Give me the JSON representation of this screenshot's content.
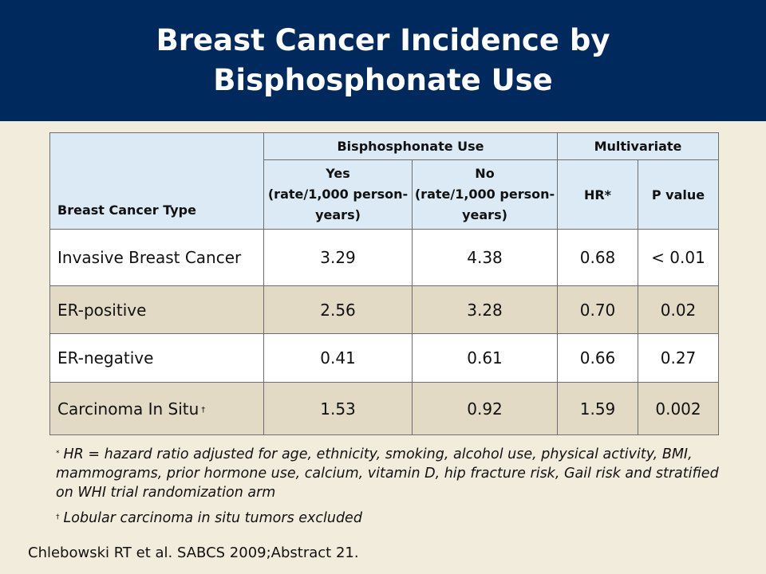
{
  "title": {
    "line1": "Breast Cancer Incidence by",
    "line2": "Bisphosphonate Use"
  },
  "table": {
    "headers": {
      "type": "Breast Cancer Type",
      "group_use": "Bisphosphonate Use",
      "group_multi": "Multivariate",
      "yes_line1": "Yes",
      "yes_line2": "(rate/1,000 person-years)",
      "no_line1": "No",
      "no_line2": "(rate/1,000 person-years)",
      "hr": "HR*",
      "p": "P value"
    },
    "rows": [
      {
        "type": "Invasive Breast Cancer",
        "mark": "",
        "yes": "3.29",
        "no": "4.38",
        "hr": "0.68",
        "p": "< 0.01"
      },
      {
        "type": "ER-positive",
        "mark": "",
        "yes": "2.56",
        "no": "3.28",
        "hr": "0.70",
        "p": "0.02"
      },
      {
        "type": "ER-negative",
        "mark": "",
        "yes": "0.41",
        "no": "0.61",
        "hr": "0.66",
        "p": "0.27"
      },
      {
        "type": "Carcinoma In Situ",
        "mark": "†",
        "yes": "1.53",
        "no": "0.92",
        "hr": "1.59",
        "p": "0.002"
      }
    ]
  },
  "footnotes": [
    {
      "mark": "*",
      "text": "HR = hazard ratio adjusted for age, ethnicity, smoking, alcohol use, physical activity, BMI, mammograms, prior hormone use, calcium, vitamin D, hip fracture risk, Gail risk and stratified on WHI trial randomization arm"
    },
    {
      "mark": "†",
      "text": "Lobular carcinoma in situ tumors excluded"
    }
  ],
  "citation": "Chlebowski RT et al. SABCS 2009;Abstract 21.",
  "colors": {
    "title_bg": "#00295e",
    "slide_bg": "#f2ecdc",
    "header_bg": "#dbeaf4",
    "row_alt_bg": "#e2dac4"
  }
}
